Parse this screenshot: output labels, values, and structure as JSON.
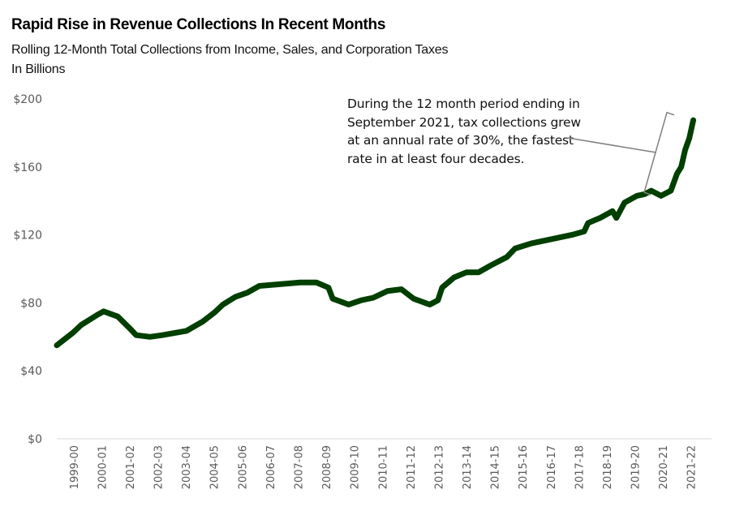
{
  "chart_data": {
    "type": "line",
    "title": "Rapid Rise in Revenue Collections In Recent Months",
    "subtitle_lines": [
      "Rolling 12-Month Total Collections from Income, Sales, and Corporation Taxes",
      "In Billions"
    ],
    "xlabel": "",
    "ylabel": "",
    "ylim": [
      0,
      200
    ],
    "yticks": [
      0,
      40,
      80,
      120,
      160,
      200
    ],
    "ytick_labels": [
      "$0",
      "$40",
      "$80",
      "$120",
      "$160",
      "$200"
    ],
    "grid": false,
    "legend": null,
    "categories": [
      "1999-00",
      "2000-01",
      "2001-02",
      "2002-03",
      "2003-04",
      "2004-05",
      "2005-06",
      "2006-07",
      "2007-08",
      "2008-09",
      "2009-10",
      "2010-11",
      "2011-12",
      "2012-13",
      "2013-14",
      "2014-15",
      "2015-16",
      "2016-17",
      "2017-18",
      "2018-19",
      "2019-20",
      "2020-21",
      "2021-22"
    ],
    "series": [
      {
        "name": "Rolling 12-Month Total Collections",
        "color": "#003f00",
        "x_fiscal_year_offset": [
          0.0,
          0.58,
          0.87,
          1.45,
          1.67,
          2.17,
          2.6,
          2.83,
          3.32,
          3.76,
          4.62,
          5.2,
          5.63,
          5.92,
          6.36,
          6.79,
          7.22,
          7.95,
          8.67,
          9.25,
          9.68,
          9.83,
          10.4,
          10.84,
          11.27,
          11.79,
          12.28,
          12.71,
          13.29,
          13.58,
          13.73,
          14.16,
          14.6,
          15.03,
          15.46,
          16.04,
          16.33,
          16.91,
          17.2,
          17.63,
          18.35,
          18.79,
          18.93,
          19.36,
          19.8,
          19.94,
          20.23,
          20.67,
          20.95,
          21.18,
          21.53,
          21.88,
          22.1,
          22.25,
          22.39,
          22.54,
          22.68
        ],
        "values": [
          55,
          62.5,
          67,
          73,
          75,
          72,
          65,
          61,
          60,
          61,
          63.5,
          69,
          74.5,
          79,
          83.5,
          86,
          90,
          91,
          92,
          92,
          89,
          82.5,
          79,
          81.5,
          83,
          87,
          88,
          82.5,
          79,
          81.5,
          89,
          95,
          98,
          98,
          102,
          107,
          112,
          115,
          116,
          117.5,
          120,
          122,
          127,
          130,
          134,
          130,
          139,
          143,
          144,
          146,
          143,
          146,
          156,
          160,
          170,
          177,
          187.5
        ]
      }
    ],
    "annotation": {
      "text": "During the 12 month period ending in September 2021, tax collections grew at an annual rate of 30%, the fastest rate in at least four decades.",
      "bracket_range_values": [
        146,
        193
      ],
      "leader_color": "#7f7f7f"
    }
  }
}
